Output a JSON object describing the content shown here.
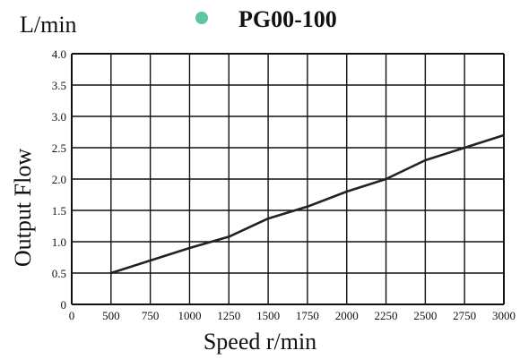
{
  "chart_data": {
    "type": "line",
    "title": "PG00-100",
    "unit_label": "L/min",
    "xlabel": "Speed r/min",
    "ylabel": "Output Flow",
    "xlim": [
      0,
      3000
    ],
    "ylim": [
      0,
      4.0
    ],
    "x_ticks": [
      "0",
      "500",
      "750",
      "1000",
      "1250",
      "1500",
      "1750",
      "2000",
      "2250",
      "2500",
      "2750",
      "3000"
    ],
    "y_ticks": [
      "0",
      "0.5",
      "1.0",
      "1.5",
      "2.0",
      "2.5",
      "3.0",
      "3.5",
      "4.0"
    ],
    "grid": true,
    "legend_marker_color": "#5cc6a4",
    "series": [
      {
        "x": [
          500,
          750,
          1000,
          1250,
          1500,
          1750,
          2000,
          2250,
          2500,
          2750,
          3000
        ],
        "y": [
          0.5,
          0.7,
          0.9,
          1.08,
          1.37,
          1.56,
          1.8,
          2.0,
          2.3,
          2.5,
          2.7
        ],
        "color": "#222222"
      }
    ]
  }
}
